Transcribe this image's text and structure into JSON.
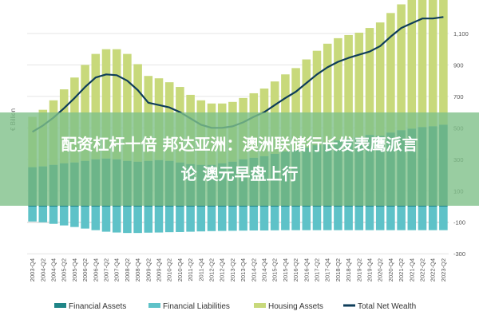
{
  "overlay": {
    "line1": "配资杠杆十倍 邦达亚洲：澳洲联储行长发表鹰派言",
    "line2": "论 澳元早盘上行"
  },
  "chart_data": {
    "type": "bar",
    "ylabel": "€ Billion",
    "ylim": [
      -300,
      1200
    ],
    "y_ticks": [
      1100,
      900,
      700,
      500,
      300,
      100,
      -100,
      -300
    ],
    "x_first_label": "2003-Q4",
    "categories": [
      "2003-Q4",
      "2004-Q2",
      "2004-Q4",
      "2005-Q2",
      "2005-Q4",
      "2006-Q2",
      "2006-Q4",
      "2007-Q2",
      "2007-Q4",
      "2008-Q2",
      "2008-Q4",
      "2009-Q2",
      "2009-Q4",
      "2010-Q2",
      "2010-Q4",
      "2011-Q2",
      "2011-Q4",
      "2012-Q2",
      "2012-Q4",
      "2013-Q2",
      "2013-Q4",
      "2014-Q2",
      "2014-Q4",
      "2015-Q2",
      "2015-Q4",
      "2016-Q2",
      "2016-Q4",
      "2017-Q2",
      "2017-Q4",
      "2018-Q2",
      "2018-Q4",
      "2019-Q2",
      "2019-Q4",
      "2020-Q2",
      "2020-Q4",
      "2021-Q2",
      "2021-Q4",
      "2022-Q2",
      "2022-Q4",
      "2023-Q2"
    ],
    "series": [
      {
        "name": "Financial Assets",
        "color": "#1f8587",
        "values": [
          250,
          255,
          265,
          275,
          280,
          290,
          300,
          305,
          300,
          290,
          285,
          290,
          295,
          290,
          280,
          270,
          265,
          265,
          275,
          285,
          300,
          310,
          320,
          335,
          350,
          360,
          375,
          390,
          405,
          420,
          430,
          440,
          455,
          450,
          470,
          485,
          495,
          505,
          510,
          520
        ]
      },
      {
        "name": "Financial Liabilities",
        "color": "#5ec2c8",
        "values": [
          -95,
          -100,
          -110,
          -120,
          -130,
          -140,
          -150,
          -160,
          -165,
          -168,
          -168,
          -166,
          -165,
          -163,
          -162,
          -160,
          -158,
          -156,
          -155,
          -154,
          -153,
          -152,
          -152,
          -151,
          -150,
          -150,
          -150,
          -150,
          -150,
          -150,
          -150,
          -150,
          -150,
          -150,
          -150,
          -150,
          -150,
          -150,
          -150,
          -150
        ]
      },
      {
        "name": "Housing Assets",
        "color": "#c8d97b",
        "values": [
          320,
          360,
          410,
          470,
          540,
          610,
          670,
          695,
          700,
          680,
          620,
          540,
          520,
          500,
          480,
          440,
          410,
          390,
          380,
          380,
          390,
          410,
          430,
          460,
          490,
          520,
          560,
          600,
          630,
          650,
          660,
          665,
          680,
          720,
          760,
          800,
          820,
          835,
          830,
          830
        ]
      },
      {
        "name": "Total Net Wealth",
        "color": "#0e3d5a",
        "type": "line",
        "values": [
          475,
          515,
          565,
          625,
          690,
          760,
          820,
          840,
          835,
          800,
          740,
          660,
          645,
          630,
          600,
          560,
          520,
          500,
          500,
          510,
          535,
          570,
          600,
          645,
          690,
          730,
          785,
          840,
          885,
          920,
          945,
          965,
          985,
          1020,
          1080,
          1135,
          1165,
          1195,
          1195,
          1205
        ]
      }
    ],
    "legend_position": "bottom",
    "grid": true
  }
}
